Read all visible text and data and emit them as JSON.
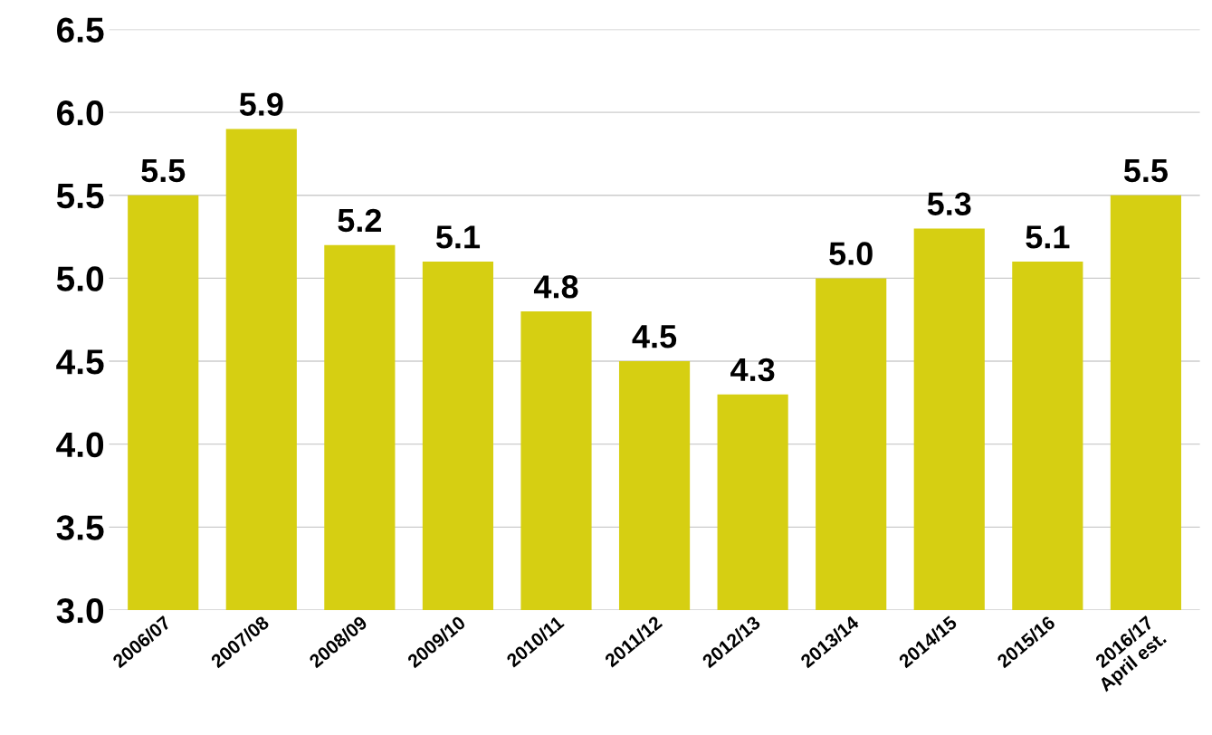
{
  "chart_data": {
    "type": "bar",
    "categories": [
      "2006/07",
      "2007/08",
      "2008/09",
      "2009/10",
      "2010/11",
      "2011/12",
      "2012/13",
      "2013/14",
      "2014/15",
      "2015/16",
      "2016/17\nApril est."
    ],
    "values": [
      5.5,
      5.9,
      5.2,
      5.1,
      4.8,
      4.5,
      4.3,
      5.0,
      5.3,
      5.1,
      5.5
    ],
    "color": "#d6cf12",
    "value_labels": [
      "5.5",
      "5.9",
      "5.2",
      "5.1",
      "4.8",
      "4.5",
      "4.3",
      "5.0",
      "5.3",
      "5.1",
      "5.5"
    ],
    "ylim": [
      3.0,
      6.5
    ],
    "yticks": [
      {
        "value": 3.0,
        "label": "3.0"
      },
      {
        "value": 3.5,
        "label": "3.5"
      },
      {
        "value": 4.0,
        "label": "4.0"
      },
      {
        "value": 4.5,
        "label": "4.5"
      },
      {
        "value": 5.0,
        "label": "5.0"
      },
      {
        "value": 5.5,
        "label": "5.5"
      },
      {
        "value": 6.0,
        "label": "6.0"
      },
      {
        "value": 6.5,
        "label": "6.5"
      }
    ],
    "grid": "y"
  }
}
